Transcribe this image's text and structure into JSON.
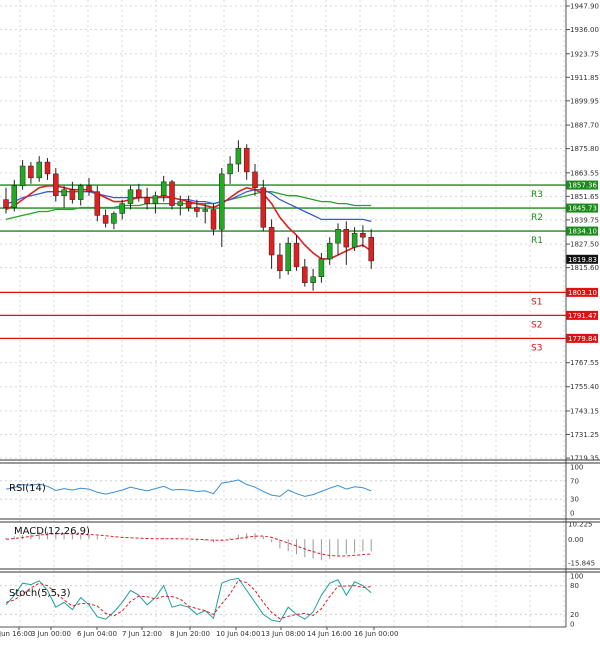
{
  "chart_data": {
    "type": "candlestick",
    "x_ticks": [
      "Jun 16:00",
      "3 Jun 00:00",
      "6 Jun 04:00",
      "7 Jun 12:00",
      "8 Jun 20:00",
      "10 Jun 04:00",
      "13 Jun 08:00",
      "14 Jun 16:00",
      "16 Jun 00:00"
    ],
    "price_axis": {
      "ticks": [
        "1947.90",
        "1936.00",
        "1923.75",
        "1911.85",
        "1899.95",
        "1887.70",
        "1875.80",
        "1863.55",
        "1851.65",
        "1839.75",
        "1827.50",
        "1815.60",
        "1767.55",
        "1755.40",
        "1743.15",
        "1731.25",
        "1719.35"
      ],
      "range": [
        1719.35,
        1947.9
      ]
    },
    "current_price": "1819.83",
    "levels": [
      {
        "name": "R3",
        "value": "1857.36",
        "color": "#1a8a1a"
      },
      {
        "name": "R2",
        "value": "1845.73",
        "color": "#1a8a1a"
      },
      {
        "name": "R1",
        "value": "1834.10",
        "color": "#1a8a1a"
      },
      {
        "name": "S1",
        "value": "1803.10",
        "color": "#e01010"
      },
      {
        "name": "S2",
        "value": "1791.47",
        "color": "#e01010"
      },
      {
        "name": "S3",
        "value": "1779.84",
        "color": "#e01010"
      }
    ],
    "candles": [
      [
        1850,
        1856,
        1843,
        1846
      ],
      [
        1846,
        1860,
        1844,
        1857
      ],
      [
        1857,
        1870,
        1855,
        1867
      ],
      [
        1867,
        1869,
        1858,
        1861
      ],
      [
        1861,
        1872,
        1859,
        1869
      ],
      [
        1869,
        1871,
        1860,
        1863
      ],
      [
        1863,
        1866,
        1849,
        1852
      ],
      [
        1852,
        1857,
        1846,
        1855
      ],
      [
        1855,
        1859,
        1848,
        1850
      ],
      [
        1850,
        1858,
        1847,
        1857
      ],
      [
        1857,
        1861,
        1852,
        1854
      ],
      [
        1854,
        1857,
        1839,
        1842
      ],
      [
        1842,
        1845,
        1836,
        1838
      ],
      [
        1838,
        1844,
        1835,
        1843
      ],
      [
        1843,
        1850,
        1840,
        1848
      ],
      [
        1848,
        1857,
        1845,
        1855
      ],
      [
        1855,
        1858,
        1849,
        1851
      ],
      [
        1851,
        1856,
        1845,
        1848
      ],
      [
        1848,
        1854,
        1843,
        1852
      ],
      [
        1852,
        1862,
        1849,
        1859
      ],
      [
        1859,
        1860,
        1845,
        1847
      ],
      [
        1847,
        1852,
        1842,
        1849
      ],
      [
        1849,
        1852,
        1844,
        1846
      ],
      [
        1846,
        1850,
        1841,
        1844
      ],
      [
        1844,
        1848,
        1838,
        1845
      ],
      [
        1845,
        1848,
        1832,
        1835
      ],
      [
        1835,
        1866,
        1826,
        1863
      ],
      [
        1863,
        1872,
        1858,
        1868
      ],
      [
        1868,
        1880,
        1864,
        1876
      ],
      [
        1876,
        1878,
        1860,
        1864
      ],
      [
        1864,
        1868,
        1852,
        1856
      ],
      [
        1856,
        1860,
        1834,
        1836
      ],
      [
        1836,
        1840,
        1815,
        1822
      ],
      [
        1822,
        1828,
        1810,
        1814
      ],
      [
        1814,
        1831,
        1812,
        1828
      ],
      [
        1828,
        1832,
        1814,
        1816
      ],
      [
        1816,
        1820,
        1806,
        1808
      ],
      [
        1808,
        1815,
        1804,
        1811
      ],
      [
        1811,
        1823,
        1808,
        1820
      ],
      [
        1820,
        1831,
        1817,
        1828
      ],
      [
        1828,
        1838,
        1822,
        1835
      ],
      [
        1835,
        1839,
        1817,
        1826
      ],
      [
        1826,
        1836,
        1824,
        1833
      ],
      [
        1833,
        1837,
        1826,
        1831
      ],
      [
        1831,
        1835,
        1815,
        1819
      ]
    ],
    "ma_fast": [
      1845,
      1847,
      1850,
      1853,
      1856,
      1857,
      1857,
      1856,
      1855,
      1855,
      1855,
      1853,
      1851,
      1849,
      1849,
      1850,
      1851,
      1851,
      1851,
      1852,
      1851,
      1850,
      1849,
      1848,
      1847,
      1846,
      1848,
      1851,
      1854,
      1856,
      1855,
      1853,
      1848,
      1841,
      1836,
      1832,
      1827,
      1823,
      1820,
      1820,
      1822,
      1824,
      1826,
      1827,
      1824
    ],
    "ma_mid": [
      1848,
      1849,
      1851,
      1852,
      1853,
      1854,
      1854,
      1854,
      1854,
      1854,
      1854,
      1853,
      1852,
      1851,
      1851,
      1851,
      1851,
      1851,
      1851,
      1851,
      1851,
      1850,
      1850,
      1849,
      1849,
      1848,
      1849,
      1850,
      1852,
      1854,
      1855,
      1855,
      1853,
      1850,
      1848,
      1846,
      1844,
      1842,
      1840,
      1840,
      1840,
      1840,
      1840,
      1840,
      1839
    ],
    "ma_slow": [
      1840,
      1841,
      1842,
      1843,
      1844,
      1844,
      1845,
      1845,
      1845,
      1846,
      1846,
      1846,
      1846,
      1846,
      1847,
      1847,
      1847,
      1848,
      1848,
      1848,
      1848,
      1848,
      1848,
      1848,
      1848,
      1848,
      1849,
      1850,
      1851,
      1852,
      1853,
      1854,
      1854,
      1853,
      1852,
      1852,
      1851,
      1850,
      1849,
      1849,
      1848,
      1848,
      1847,
      1847,
      1847
    ],
    "indicators": {
      "rsi": {
        "label": "RSI(14)",
        "ticks": [
          "100",
          "70",
          "30",
          "0"
        ],
        "values": [
          52,
          55,
          62,
          60,
          63,
          58,
          49,
          53,
          50,
          54,
          52,
          45,
          41,
          45,
          50,
          56,
          52,
          48,
          53,
          58,
          50,
          51,
          50,
          47,
          48,
          42,
          65,
          68,
          72,
          62,
          56,
          47,
          39,
          36,
          50,
          42,
          36,
          40,
          47,
          54,
          60,
          52,
          57,
          55,
          48
        ]
      },
      "macd": {
        "label": "MACD(12,26,9)",
        "ticks": [
          "10.225",
          "0.00",
          "-15.845"
        ],
        "hist": [
          1,
          2,
          3,
          4,
          5,
          5,
          4,
          4,
          3,
          3,
          3,
          2,
          1,
          0,
          0,
          0,
          0,
          0,
          0,
          1,
          1,
          0,
          0,
          -1,
          -1,
          -2,
          -1,
          1,
          3,
          4,
          4,
          2,
          -2,
          -6,
          -8,
          -10,
          -12,
          -13,
          -14,
          -13,
          -11,
          -10,
          -9,
          -8,
          -8
        ],
        "signal": [
          0,
          0.5,
          1.2,
          2,
          2.8,
          3.4,
          3.7,
          3.8,
          3.6,
          3.4,
          3.2,
          2.9,
          2.4,
          1.8,
          1.3,
          1,
          0.7,
          0.5,
          0.4,
          0.4,
          0.4,
          0.3,
          0.2,
          0,
          -0.3,
          -0.6,
          -0.7,
          -0.3,
          0.5,
          1.4,
          2.1,
          2.2,
          1.3,
          -0.6,
          -2.5,
          -4.5,
          -6.5,
          -8.2,
          -9.8,
          -10.8,
          -11.2,
          -11.1,
          -10.7,
          -10.2,
          -9.8
        ]
      },
      "stoch": {
        "label": "Stoch(5,5,3)",
        "ticks": [
          "100",
          "80",
          "20",
          "0"
        ],
        "k": [
          40,
          60,
          85,
          82,
          90,
          70,
          35,
          45,
          30,
          55,
          40,
          15,
          10,
          25,
          45,
          70,
          60,
          40,
          55,
          80,
          35,
          40,
          35,
          20,
          28,
          12,
          85,
          92,
          95,
          70,
          45,
          20,
          8,
          5,
          35,
          20,
          10,
          25,
          60,
          85,
          92,
          60,
          88,
          80,
          65
        ],
        "d": [
          45,
          50,
          62,
          75,
          85,
          80,
          65,
          50,
          37,
          43,
          42,
          37,
          22,
          17,
          27,
          47,
          58,
          57,
          52,
          58,
          57,
          52,
          37,
          32,
          28,
          20,
          42,
          63,
          91,
          86,
          70,
          45,
          24,
          11,
          16,
          20,
          22,
          18,
          32,
          57,
          79,
          79,
          80,
          76,
          78
        ]
      }
    }
  }
}
